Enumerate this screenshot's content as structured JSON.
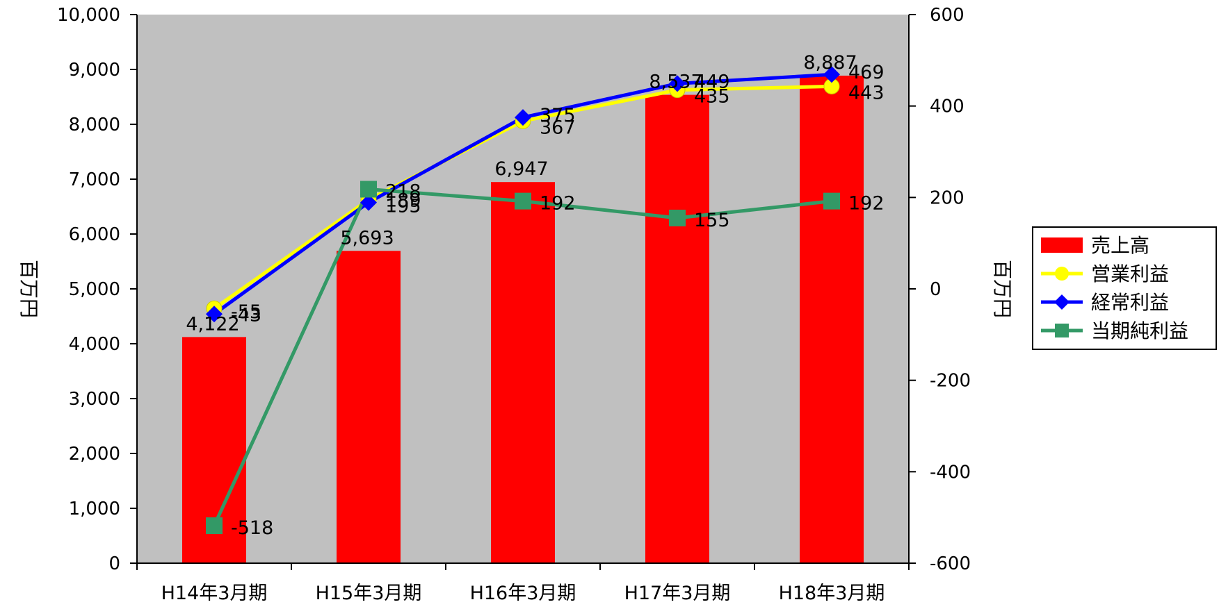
{
  "chart_data": {
    "type": "bar",
    "categories": [
      "H14年3月期",
      "H15年3月期",
      "H16年3月期",
      "H17年3月期",
      "H18年3月期"
    ],
    "left_axis": {
      "label": "百万円",
      "ylim": [
        0,
        10000
      ],
      "ticks": [
        0,
        1000,
        2000,
        3000,
        4000,
        5000,
        6000,
        7000,
        8000,
        9000,
        10000
      ],
      "tick_labels": [
        "0",
        "1,000",
        "2,000",
        "3,000",
        "4,000",
        "5,000",
        "6,000",
        "7,000",
        "8,000",
        "9,000",
        "10,000"
      ]
    },
    "right_axis": {
      "label": "百万円",
      "ylim": [
        -600,
        600
      ],
      "ticks": [
        -600,
        -400,
        -200,
        0,
        200,
        400,
        600
      ],
      "tick_labels": [
        "-600",
        "-400",
        "-200",
        "0",
        "200",
        "400",
        "600"
      ]
    },
    "grid": false,
    "plot_background": "#c0c0c0",
    "legend_position": "right",
    "series": [
      {
        "name": "売上高",
        "kind": "bar",
        "axis": "left",
        "color": "#ff0000",
        "values": [
          4122,
          5693,
          6947,
          8537,
          8887
        ],
        "labels": [
          "4,122",
          "5,693",
          "6,947",
          "8,537",
          "8,887"
        ]
      },
      {
        "name": "営業利益",
        "kind": "line",
        "axis": "right",
        "color": "#ffff00",
        "marker": "circle",
        "values": [
          -43,
          195,
          367,
          435,
          443
        ],
        "labels": [
          "-43",
          "195",
          "367",
          "435",
          "443"
        ]
      },
      {
        "name": "経常利益",
        "kind": "line",
        "axis": "right",
        "color": "#0000ff",
        "marker": "diamond",
        "values": [
          -55,
          189,
          375,
          449,
          469
        ],
        "labels": [
          "-55",
          "189",
          "375",
          "449",
          "469"
        ]
      },
      {
        "name": "当期純利益",
        "kind": "line",
        "axis": "right",
        "color": "#339966",
        "marker": "square",
        "values": [
          -518,
          218,
          192,
          155,
          192
        ],
        "labels": [
          "-518",
          "218",
          "192",
          "155",
          "192"
        ]
      }
    ]
  }
}
